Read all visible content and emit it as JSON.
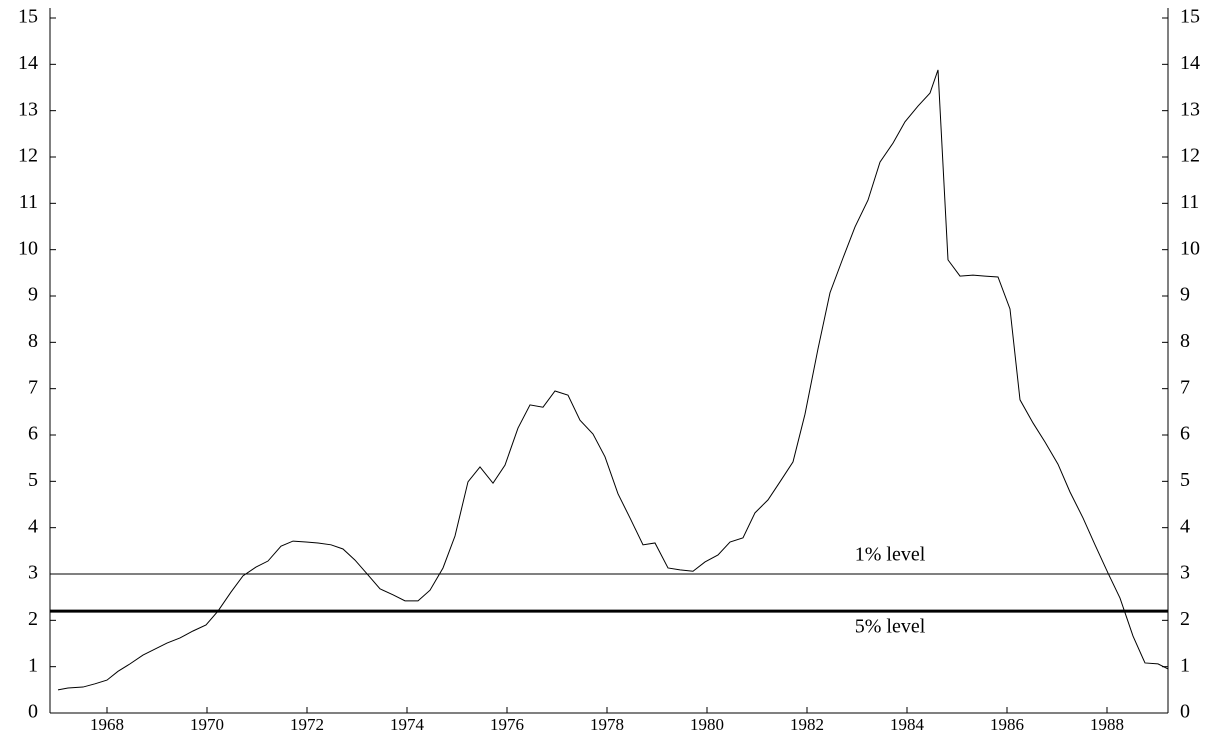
{
  "chart_data": {
    "type": "line",
    "x": [
      1967.02,
      1967.22,
      1967.52,
      1967.76,
      1968.0,
      1968.22,
      1968.46,
      1968.72,
      1968.96,
      1969.2,
      1969.46,
      1969.72,
      1969.98,
      1970.22,
      1970.48,
      1970.72,
      1970.98,
      1971.22,
      1971.48,
      1971.72,
      1971.98,
      1972.22,
      1972.48,
      1972.72,
      1972.96,
      1973.22,
      1973.46,
      1973.72,
      1973.96,
      1974.22,
      1974.46,
      1974.72,
      1974.96,
      1975.22,
      1975.46,
      1975.72,
      1975.96,
      1976.22,
      1976.46,
      1976.72,
      1976.96,
      1977.22,
      1977.46,
      1977.72,
      1977.96,
      1978.22,
      1978.46,
      1978.72,
      1978.96,
      1979.22,
      1979.46,
      1979.72,
      1979.96,
      1980.22,
      1980.46,
      1980.72,
      1980.96,
      1981.22,
      1981.46,
      1981.72,
      1981.96,
      1982.22,
      1982.46,
      1982.72,
      1982.96,
      1983.22,
      1983.46,
      1983.72,
      1983.96,
      1984.22,
      1984.46,
      1984.62,
      1984.82,
      1985.06,
      1985.32,
      1985.56,
      1985.82,
      1986.06,
      1986.26,
      1986.52,
      1986.76,
      1987.02,
      1987.26,
      1987.52,
      1987.76,
      1988.02,
      1988.26,
      1988.52,
      1988.76,
      1989.02,
      1989.22
    ],
    "series": [
      {
        "color": "#000000",
        "values": [
          0.5,
          0.54,
          0.56,
          0.63,
          0.71,
          0.9,
          1.06,
          1.25,
          1.38,
          1.51,
          1.62,
          1.77,
          1.9,
          2.2,
          2.61,
          2.96,
          3.15,
          3.28,
          3.6,
          3.71,
          3.69,
          3.67,
          3.63,
          3.54,
          3.3,
          2.98,
          2.68,
          2.55,
          2.42,
          2.42,
          2.65,
          3.13,
          3.82,
          4.99,
          5.31,
          4.96,
          5.35,
          6.15,
          6.65,
          6.6,
          6.95,
          6.86,
          6.32,
          6.02,
          5.53,
          4.73,
          4.21,
          3.63,
          3.67,
          3.13,
          3.09,
          3.06,
          3.26,
          3.41,
          3.69,
          3.78,
          4.32,
          4.6,
          4.99,
          5.42,
          6.45,
          7.86,
          9.07,
          9.82,
          10.49,
          11.07,
          11.89,
          12.3,
          12.76,
          13.1,
          13.38,
          13.88,
          9.78,
          9.43,
          9.45,
          9.43,
          9.41,
          8.72,
          6.76,
          6.26,
          5.85,
          5.37,
          4.77,
          4.21,
          3.63,
          3.02,
          2.48,
          1.66,
          1.08,
          1.06,
          0.95
        ]
      }
    ],
    "reference_lines": [
      {
        "label": "1% level",
        "value": 3.0,
        "width": 1
      },
      {
        "label": "5% level",
        "value": 2.2,
        "width": 3
      }
    ],
    "xlim": [
      1966.86,
      1989.22
    ],
    "xticks": [
      1968,
      1970,
      1972,
      1974,
      1976,
      1978,
      1980,
      1982,
      1984,
      1986,
      1988
    ],
    "ylim": [
      0,
      15
    ],
    "yticks": [
      0,
      1,
      2,
      3,
      4,
      5,
      6,
      7,
      8,
      9,
      10,
      11,
      12,
      13,
      14,
      15
    ],
    "right_axis_labels": true
  }
}
